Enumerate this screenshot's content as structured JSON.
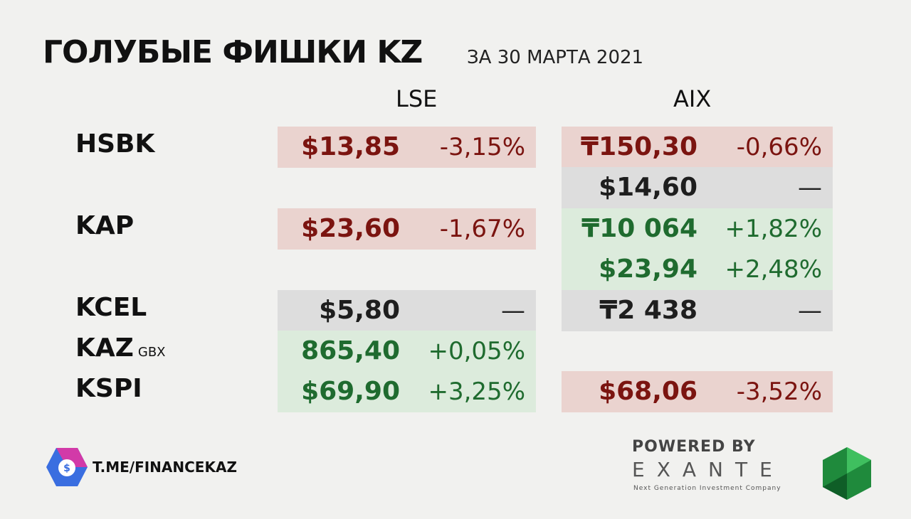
{
  "header": {
    "title": "ГОЛУБЫЕ ФИШКИ KZ",
    "subtitle": "ЗА 30 МАРТА 2021"
  },
  "columns": {
    "lse": "LSE",
    "aix": "AIX"
  },
  "lines": [
    {
      "ticker": "HSBK",
      "lse": {
        "price": "$13,85",
        "change": "-3,15%",
        "fill": "#ead3cf",
        "text_color": "#7b1410"
      },
      "aix": {
        "price": "₸150,30",
        "change": "-0,66%",
        "fill": "#ead3cf",
        "text_color": "#7b1410"
      }
    },
    {
      "aix": {
        "price": "$14,60",
        "change": "—",
        "fill": "#dddddd",
        "text_color": "#1e1e1e"
      }
    },
    {
      "ticker": "KAP",
      "lse": {
        "price": "$23,60",
        "change": "-1,67%",
        "fill": "#ead3cf",
        "text_color": "#7b1410"
      },
      "aix": {
        "price": "₸10 064",
        "change": "+1,82%",
        "fill": "#dcebdc",
        "text_color": "#1f6b2f"
      }
    },
    {
      "aix": {
        "price": "$23,94",
        "change": "+2,48%",
        "fill": "#dcebdc",
        "text_color": "#1f6b2f"
      }
    },
    {
      "ticker": "KCEL",
      "lse": {
        "price": "$5,80",
        "change": "—",
        "fill": "#dddddd",
        "text_color": "#1e1e1e"
      },
      "aix": {
        "price": "₸2 438",
        "change": "—",
        "fill": "#dddddd",
        "text_color": "#1e1e1e"
      }
    },
    {
      "ticker": "KAZ",
      "unit": "GBX",
      "lse": {
        "price": "865,40",
        "change": "+0,05%",
        "fill": "#dcebdc",
        "text_color": "#1f6b2f"
      }
    },
    {
      "ticker": "KSPI",
      "lse": {
        "price": "$69,90",
        "change": "+3,25%",
        "fill": "#dcebdc",
        "text_color": "#1f6b2f"
      },
      "aix": {
        "price": "$68,06",
        "change": "-3,52%",
        "fill": "#ead3cf",
        "text_color": "#7b1410"
      }
    }
  ],
  "footer": {
    "channel": "T.ME/FINANCEKAZ",
    "powered": "POWERED BY",
    "brand": "EXANTE",
    "tagline": "Next Generation Investment Company"
  }
}
